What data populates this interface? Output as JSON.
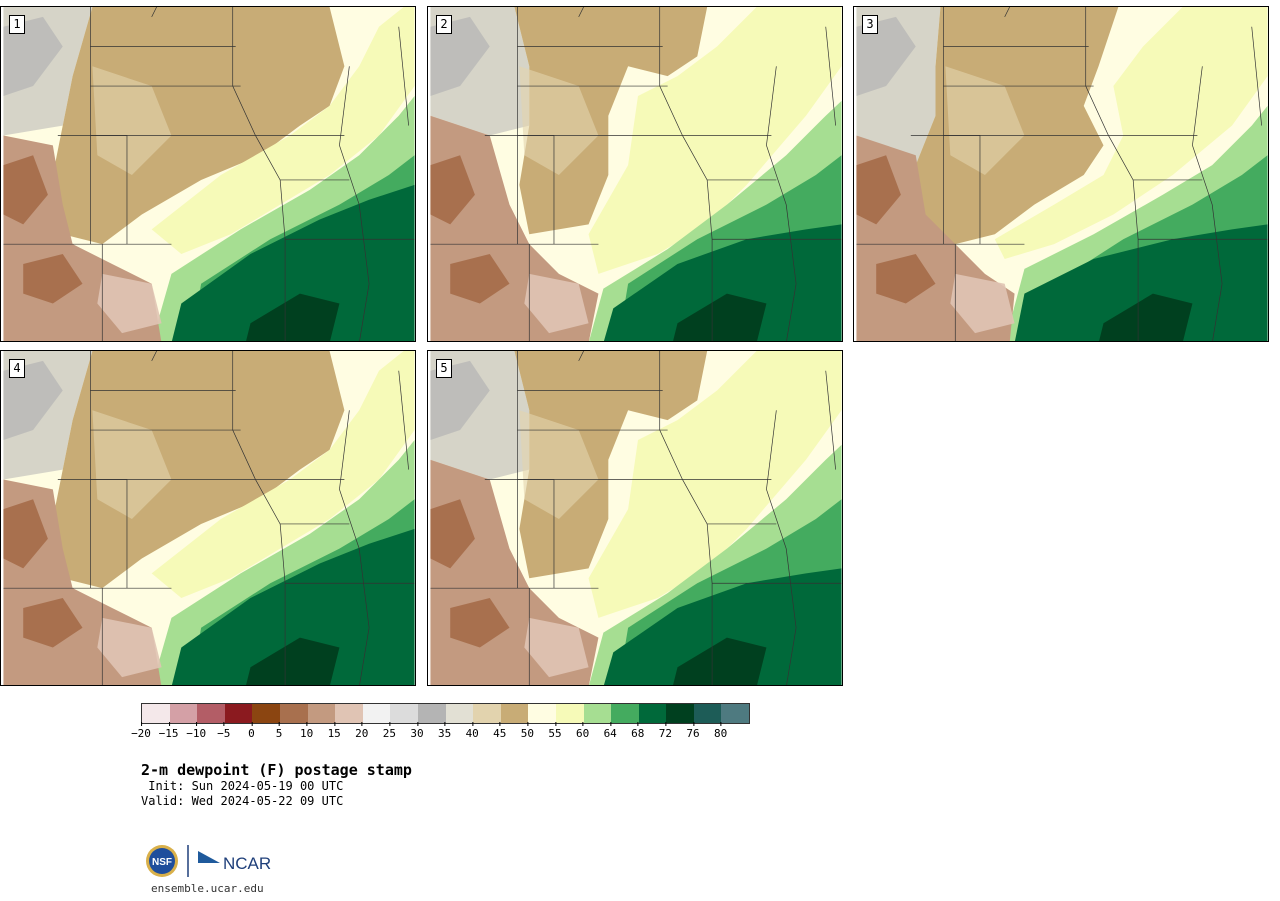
{
  "title": "2-m dewpoint (F) postage stamp",
  "init": " Init: Sun 2024-05-19 00 UTC",
  "valid": "Valid: Wed 2024-05-22 09 UTC",
  "site": "ensemble.ucar.edu",
  "logos": {
    "nsf": "NSF",
    "ncar": "NCAR"
  },
  "panels": [
    {
      "label": "1",
      "variant": 0
    },
    {
      "label": "2",
      "variant": 1
    },
    {
      "label": "3",
      "variant": 2
    },
    {
      "label": "4",
      "variant": 0
    },
    {
      "label": "5",
      "variant": 1
    }
  ],
  "colorbar": {
    "colors": [
      "#f4e8ea",
      "#d4a0a6",
      "#b35d66",
      "#8b1a1f",
      "#8b4511",
      "#a8704e",
      "#c39a80",
      "#e0c4b4",
      "#f2f2f2",
      "#dcdcdc",
      "#b4b4b4",
      "#e2e0d4",
      "#e2d3ae",
      "#c8ac76",
      "#fffde2",
      "#f6fab8",
      "#a6de92",
      "#44ab5f",
      "#00693a",
      "#00401f",
      "#1d5c57",
      "#4e7a80"
    ],
    "ticks": [
      "−20",
      "−15",
      "−10",
      "−5",
      "0",
      "5",
      "10",
      "15",
      "20",
      "25",
      "30",
      "35",
      "40",
      "45",
      "50",
      "55",
      "60",
      "64",
      "68",
      "72",
      "76",
      "80"
    ]
  }
}
